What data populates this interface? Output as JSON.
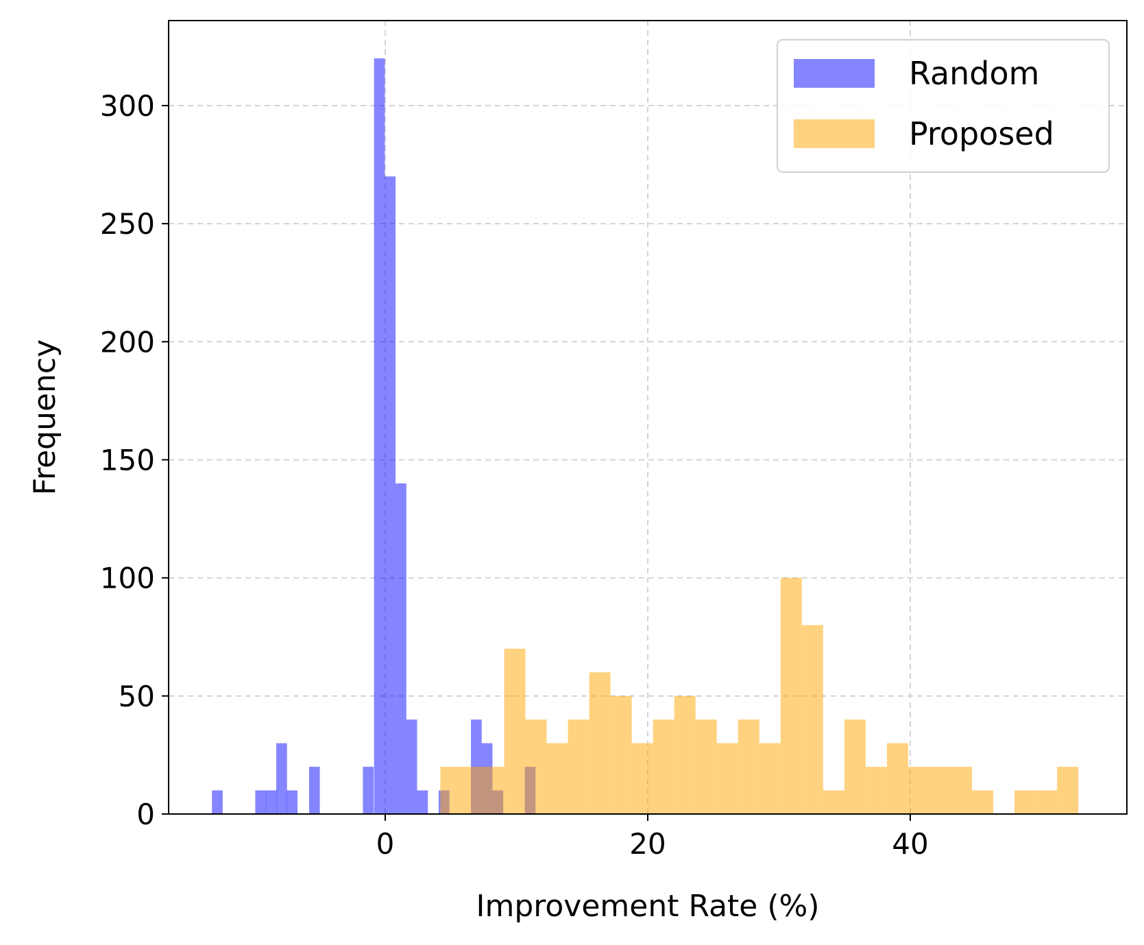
{
  "chart_data": {
    "type": "bar",
    "subtype": "overlapping-histogram",
    "xlabel": "Improvement Rate (%)",
    "ylabel": "Frequency",
    "xlim": [
      -16.5,
      56.5
    ],
    "ylim": [
      0,
      336
    ],
    "x_ticks": [
      0,
      20,
      40
    ],
    "y_ticks": [
      0,
      50,
      100,
      150,
      200,
      250,
      300
    ],
    "grid": true,
    "legend_position": "top-right",
    "series": [
      {
        "name": "Random",
        "color": "#0000ff",
        "opacity": 0.48,
        "bin_width": 0.82,
        "bins": [
          {
            "x0": -13.2,
            "count": 10
          },
          {
            "x0": -9.9,
            "count": 10
          },
          {
            "x0": -9.1,
            "count": 10
          },
          {
            "x0": -8.3,
            "count": 30
          },
          {
            "x0": -7.5,
            "count": 10
          },
          {
            "x0": -5.8,
            "count": 20
          },
          {
            "x0": -1.7,
            "count": 20
          },
          {
            "x0": -0.85,
            "count": 320
          },
          {
            "x0": -0.03,
            "count": 270
          },
          {
            "x0": 0.79,
            "count": 140
          },
          {
            "x0": 1.61,
            "count": 40
          },
          {
            "x0": 2.43,
            "count": 10
          },
          {
            "x0": 4.07,
            "count": 10
          },
          {
            "x0": 6.53,
            "count": 40
          },
          {
            "x0": 7.35,
            "count": 30
          },
          {
            "x0": 8.17,
            "count": 10
          },
          {
            "x0": 10.63,
            "count": 20
          }
        ]
      },
      {
        "name": "Proposed",
        "color": "#ffa500",
        "opacity": 0.5,
        "bin_width": 1.62,
        "bins": [
          {
            "x0": 4.2,
            "count": 20
          },
          {
            "x0": 5.82,
            "count": 20
          },
          {
            "x0": 7.44,
            "count": 20
          },
          {
            "x0": 9.06,
            "count": 70
          },
          {
            "x0": 10.68,
            "count": 40
          },
          {
            "x0": 12.3,
            "count": 30
          },
          {
            "x0": 13.92,
            "count": 40
          },
          {
            "x0": 15.54,
            "count": 60
          },
          {
            "x0": 17.16,
            "count": 50
          },
          {
            "x0": 18.78,
            "count": 30
          },
          {
            "x0": 20.4,
            "count": 40
          },
          {
            "x0": 22.02,
            "count": 50
          },
          {
            "x0": 23.64,
            "count": 40
          },
          {
            "x0": 25.26,
            "count": 30
          },
          {
            "x0": 26.88,
            "count": 40
          },
          {
            "x0": 28.5,
            "count": 30
          },
          {
            "x0": 30.12,
            "count": 100
          },
          {
            "x0": 31.74,
            "count": 80
          },
          {
            "x0": 33.36,
            "count": 10
          },
          {
            "x0": 34.98,
            "count": 40
          },
          {
            "x0": 36.6,
            "count": 20
          },
          {
            "x0": 38.22,
            "count": 30
          },
          {
            "x0": 39.84,
            "count": 20
          },
          {
            "x0": 41.46,
            "count": 20
          },
          {
            "x0": 43.08,
            "count": 20
          },
          {
            "x0": 44.7,
            "count": 10
          },
          {
            "x0": 47.94,
            "count": 10
          },
          {
            "x0": 49.56,
            "count": 10
          },
          {
            "x0": 51.18,
            "count": 20
          }
        ]
      }
    ]
  }
}
